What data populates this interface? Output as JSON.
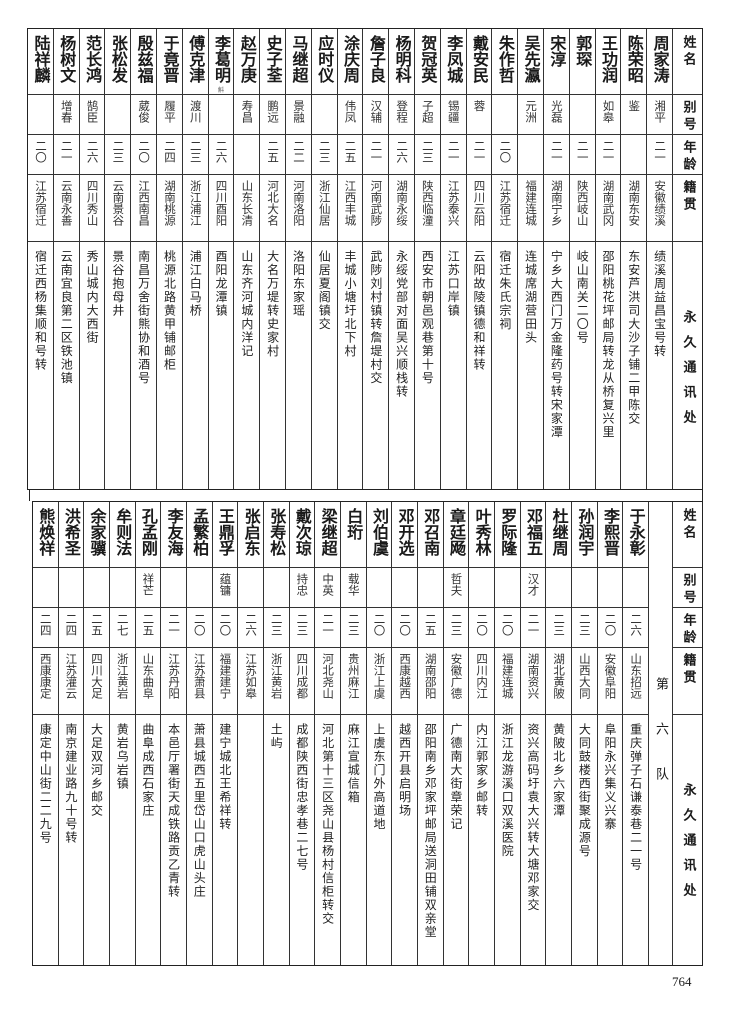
{
  "headers": {
    "name": "姓名",
    "alias": "别号",
    "age": "年龄",
    "native": "籍贯",
    "address": "永久通讯处"
  },
  "team_label": "第六队",
  "page_number": "764",
  "top_table": [
    {
      "name": "周家涛",
      "alias": "湘平",
      "age": "二一",
      "native": "安徽绩溪",
      "address": "绩溪周益昌宝号转"
    },
    {
      "name": "陈荣昭",
      "alias": "鉴",
      "age": "",
      "native": "湖南东安",
      "address": "东安芦洪司大沙子铺二甲陈交"
    },
    {
      "name": "王功润",
      "alias": "如皋",
      "age": "二一",
      "native": "湖南武冈",
      "address": "邵阳桃花坪邮局转龙从桥复兴里"
    },
    {
      "name": "郭琛",
      "alias": "",
      "age": "二一",
      "native": "陕西岐山",
      "address": "岐山南关二〇号"
    },
    {
      "name": "宋淳",
      "alias": "光磊",
      "age": "二一",
      "native": "湖南宁乡",
      "address": "宁乡大西门万金隆药号转宋家潭"
    },
    {
      "name": "吴先瀛",
      "alias": "元洲",
      "age": "",
      "native": "福建连城",
      "address": "连城席湖营田头"
    },
    {
      "name": "朱作哲",
      "alias": "",
      "age": "二〇",
      "native": "江苏宿迁",
      "address": "宿迁朱氏宗祠"
    },
    {
      "name": "戴安民",
      "alias": "蓉",
      "age": "二一",
      "native": "四川云阳",
      "address": "云阳故陵镇德和祥转"
    },
    {
      "name": "李凤城",
      "alias": "锡疆",
      "age": "二一",
      "native": "江苏泰兴",
      "address": "江苏口岸镇"
    },
    {
      "name": "贺冠英",
      "alias": "子超",
      "age": "二三",
      "native": "陕西临潼",
      "address": "西安市朝邑观巷第十号"
    },
    {
      "name": "杨明科",
      "alias": "登程",
      "age": "二六",
      "native": "湖南永绥",
      "address": "永绥党部对面吴兴顺栈转"
    },
    {
      "name": "詹子良",
      "alias": "汉辅",
      "age": "二一",
      "native": "河南武陟",
      "address": "武陟刘村镇转詹堤村交"
    },
    {
      "name": "涂庆周",
      "alias": "伟凤",
      "age": "二五",
      "native": "江西丰城",
      "address": "丰城小塘圩北下村"
    },
    {
      "name": "应时仪",
      "alias": "",
      "age": "二三",
      "native": "浙江仙居",
      "address": "仙居夏阁镇交"
    },
    {
      "name": "马继超",
      "alias": "景融",
      "age": "二二",
      "native": "河南洛阳",
      "address": "洛阳东家瑶"
    },
    {
      "name": "史子荃",
      "alias": "鹏远",
      "age": "二五",
      "native": "河北大名",
      "address": "大名万堤转史家村"
    },
    {
      "name": "赵万庚",
      "alias": "寿昌",
      "age": "",
      "native": "山东长清",
      "address": "山东齐河城内洋记"
    },
    {
      "name": "李葛明",
      "note": "斛",
      "alias": "",
      "age": "二六",
      "native": "四川酉阳",
      "address": "酉阳龙潭镇"
    },
    {
      "name": "傅克津",
      "alias": "渡川",
      "age": "二三",
      "native": "浙江浦江",
      "address": "浦江白马桥"
    },
    {
      "name": "于竟晋",
      "alias": "履平",
      "age": "二四",
      "native": "湖南桃源",
      "address": "桃源北路黄甲铺邮柜"
    },
    {
      "name": "殷兹福",
      "alias": "葳俊",
      "age": "二〇",
      "native": "江西南昌",
      "address": "南昌万舍街熊协和酒号"
    },
    {
      "name": "张松发",
      "alias": "",
      "age": "二三",
      "native": "云南景谷",
      "address": "景谷抱母井"
    },
    {
      "name": "范长鸿",
      "alias": "鹄臣",
      "age": "二六",
      "native": "四川秀山",
      "address": "秀山城内大西街"
    },
    {
      "name": "杨树文",
      "alias": "增春",
      "age": "二一",
      "native": "云南永善",
      "address": "云南宜良第二区铁池镇"
    },
    {
      "name": "陆祥麟",
      "alias": "",
      "age": "二〇",
      "native": "江苏宿迁",
      "address": "宿迁西杨集顺和号转"
    }
  ],
  "bottom_table": [
    {
      "name": "于永彰",
      "alias": "",
      "age": "二六",
      "native": "山东招远",
      "address": "重庆弹子石谦泰巷二一号"
    },
    {
      "name": "李熙晋",
      "alias": "",
      "age": "二〇",
      "native": "安徽阜阳",
      "address": "阜阳永兴集义兴寨"
    },
    {
      "name": "孙润宇",
      "alias": "",
      "age": "二三",
      "native": "山西大同",
      "address": "大同鼓楼西街聚成源号"
    },
    {
      "name": "杜继周",
      "alias": "",
      "age": "二三",
      "native": "湖北黄陂",
      "address": "黄陂北乡六家潭"
    },
    {
      "name": "邓福五",
      "alias": "汉才",
      "age": "二一",
      "native": "湖南资兴",
      "address": "资兴高码圩袁大兴转大塘邓家交"
    },
    {
      "name": "罗际隆",
      "alias": "",
      "age": "二〇",
      "native": "福建连城",
      "address": "浙江龙游溪口双溪医院"
    },
    {
      "name": "叶秀林",
      "alias": "",
      "age": "二〇",
      "native": "四川内江",
      "address": "内江郭家乡邮转"
    },
    {
      "name": "章廷飏",
      "alias": "哲夫",
      "age": "二三",
      "native": "安徽广德",
      "address": "广德南大街章荣记"
    },
    {
      "name": "邓召南",
      "alias": "",
      "age": "二五",
      "native": "湖南邵阳",
      "address": "邵阳南乡邓家坪邮局送洞田铺双亲堂"
    },
    {
      "name": "邓开选",
      "alias": "",
      "age": "二〇",
      "native": "西康越西",
      "address": "越西开县启明场"
    },
    {
      "name": "刘伯虞",
      "alias": "",
      "age": "二〇",
      "native": "浙江上虞",
      "address": "上虞东门外高道地"
    },
    {
      "name": "白珩",
      "alias": "载华",
      "age": "二三",
      "native": "贵州麻江",
      "address": "麻江宣城信箱"
    },
    {
      "name": "梁继超",
      "alias": "中英",
      "age": "二一",
      "native": "河北尧山",
      "address": "河北第十三区尧山县杨村信柜转交"
    },
    {
      "name": "戴次琼",
      "alias": "持忠",
      "age": "二三",
      "native": "四川成都",
      "address": "成都陕西街忠孝巷二七号"
    },
    {
      "name": "张寿松",
      "alias": "",
      "age": "二三",
      "native": "浙江黄岩",
      "address": "土屿"
    },
    {
      "name": "张启东",
      "alias": "",
      "age": "二六",
      "native": "江苏如皋",
      "address": ""
    },
    {
      "name": "王鼎孚",
      "alias": "蕴镛",
      "age": "二〇",
      "native": "福建建宁",
      "address": "建宁城北王希祥转"
    },
    {
      "name": "孟繁柏",
      "alias": "",
      "age": "二〇",
      "native": "江苏萧县",
      "address": "萧县城西五里岱山口虎山头庄"
    },
    {
      "name": "李友海",
      "alias": "",
      "age": "二一",
      "native": "江苏丹阳",
      "address": "本邑厅署街天成铁路贡乙青转"
    },
    {
      "name": "孔孟刚",
      "alias": "祥芒",
      "age": "二五",
      "native": "山东曲阜",
      "address": "曲阜成西石家庄"
    },
    {
      "name": "牟则法",
      "alias": "",
      "age": "二七",
      "native": "浙江黄岩",
      "address": "黄岩乌岩镇"
    },
    {
      "name": "余家骥",
      "alias": "",
      "age": "二五",
      "native": "四川大足",
      "address": "大足双河乡邮交"
    },
    {
      "name": "洪希圣",
      "alias": "",
      "age": "二四",
      "native": "江苏灌云",
      "address": "南京建业路九十号转"
    },
    {
      "name": "熊焕祥",
      "alias": "",
      "age": "二四",
      "native": "西康康定",
      "address": "康定中山街二二九号"
    }
  ]
}
